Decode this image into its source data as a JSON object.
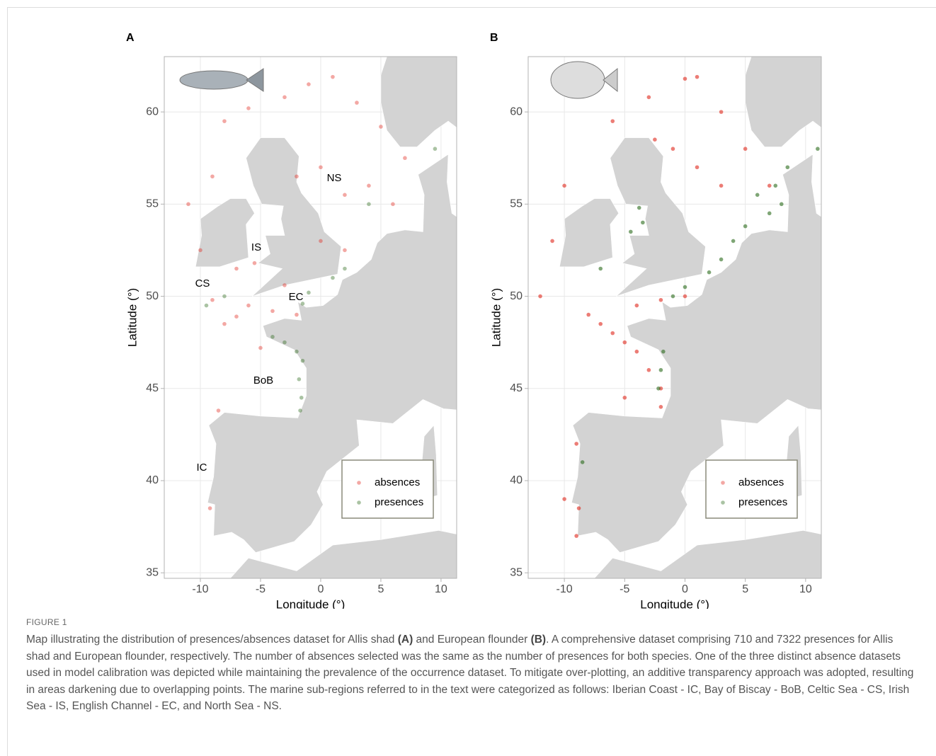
{
  "chart_data": [
    {
      "type": "scatter",
      "title": "A",
      "xlabel": "Longitude (°)",
      "ylabel": "Latitude (°)",
      "xlim": [
        -13,
        11.3
      ],
      "ylim": [
        34.7,
        63
      ],
      "xticks": [
        -10,
        -5,
        0,
        5,
        10
      ],
      "yticks": [
        35,
        40,
        45,
        50,
        55,
        60
      ],
      "grid": true,
      "legend": "bottom-right",
      "annotations": [
        "NS",
        "IS",
        "CS",
        "EC",
        "BoB",
        "IC"
      ],
      "series": [
        {
          "name": "absences",
          "color": "#e0261b",
          "x": [
            -8,
            -6,
            -3,
            -1,
            1,
            3,
            5,
            7,
            -2,
            0,
            2,
            4,
            6,
            -9,
            -11,
            -10,
            -7,
            -5.5,
            -3,
            -6,
            -4,
            -2,
            -8,
            -7,
            -9,
            0,
            2,
            -5,
            -8.5,
            -9.2
          ],
          "y": [
            59.5,
            60.2,
            60.8,
            61.5,
            61.9,
            60.5,
            59.2,
            57.5,
            56.5,
            57,
            55.5,
            56,
            55,
            56.5,
            55,
            52.5,
            51.5,
            51.8,
            50.6,
            49.5,
            49.2,
            49,
            48.5,
            48.9,
            49.8,
            53,
            52.5,
            47.2,
            43.8,
            38.5
          ]
        },
        {
          "name": "presences",
          "color": "#2a6a1a",
          "x": [
            -1.5,
            -1,
            1,
            2,
            -3,
            -2,
            -1.5,
            -1.8,
            -1.6,
            -1.7,
            -4,
            -8,
            -9.5,
            4,
            9.5
          ],
          "y": [
            49.6,
            50.2,
            51,
            51.5,
            47.5,
            47,
            46.5,
            45.5,
            44.5,
            43.8,
            47.8,
            50,
            49.5,
            55,
            58
          ]
        }
      ]
    },
    {
      "type": "scatter",
      "title": "B",
      "xlabel": "Longitude (°)",
      "ylabel": "Latitude (°)",
      "xlim": [
        -13,
        11.3
      ],
      "ylim": [
        34.7,
        63
      ],
      "xticks": [
        -10,
        -5,
        0,
        5,
        10
      ],
      "yticks": [
        35,
        40,
        45,
        50,
        55,
        60
      ],
      "grid": true,
      "legend": "bottom-right",
      "series": [
        {
          "name": "absences",
          "color": "#e0261b",
          "x": [
            -6,
            -3,
            0,
            1,
            3,
            5,
            7,
            -1,
            1,
            3,
            -10,
            -11,
            -12,
            -8,
            -7,
            -6,
            -5,
            -4,
            -3,
            -2,
            -2,
            -4,
            -2,
            0,
            -9,
            -9,
            -8.8,
            -10,
            -5,
            -2.5
          ],
          "y": [
            59.5,
            60.8,
            61.8,
            61.9,
            60,
            58,
            56,
            58,
            57,
            56,
            56,
            53,
            50,
            49,
            48.5,
            48,
            47.5,
            47,
            46,
            45,
            44,
            49.5,
            49.8,
            50,
            42,
            37,
            38.5,
            39,
            44.5,
            58.5
          ]
        },
        {
          "name": "presences",
          "color": "#2a6a1a",
          "x": [
            -1,
            0,
            2,
            3,
            4,
            5,
            7,
            8,
            7.5,
            6,
            -3.5,
            -3.8,
            -4.5,
            -2,
            -2.2,
            11,
            8.5,
            -7,
            -8.5,
            -1.8
          ],
          "y": [
            50,
            50.5,
            51.3,
            52,
            53,
            53.8,
            54.5,
            55,
            56,
            55.5,
            54,
            54.8,
            53.5,
            46,
            45,
            58,
            57,
            51.5,
            41,
            47
          ]
        }
      ]
    }
  ],
  "caption": {
    "label": "FIGURE 1",
    "parts": [
      "Map illustrating the distribution of presences/absences dataset for Allis shad ",
      "(A)",
      " and European flounder ",
      "(B)",
      ". A comprehensive dataset comprising 710 and 7322 presences for Allis shad and European flounder, respectively. The number of absences selected was the same as the number of presences for both species. One of the three distinct absence datasets used in model calibration was depicted while maintaining the prevalence of the occurrence dataset. To mitigate over-plotting, an additive transparency approach was adopted, resulting in areas darkening due to overlapping points. The marine sub-regions referred to in the text were categorized as follows: Iberian Coast - IC, Bay of Biscay - BoB, Celtic Sea - CS, Irish Sea - IS, English Channel - EC, and North Sea - NS."
    ]
  }
}
